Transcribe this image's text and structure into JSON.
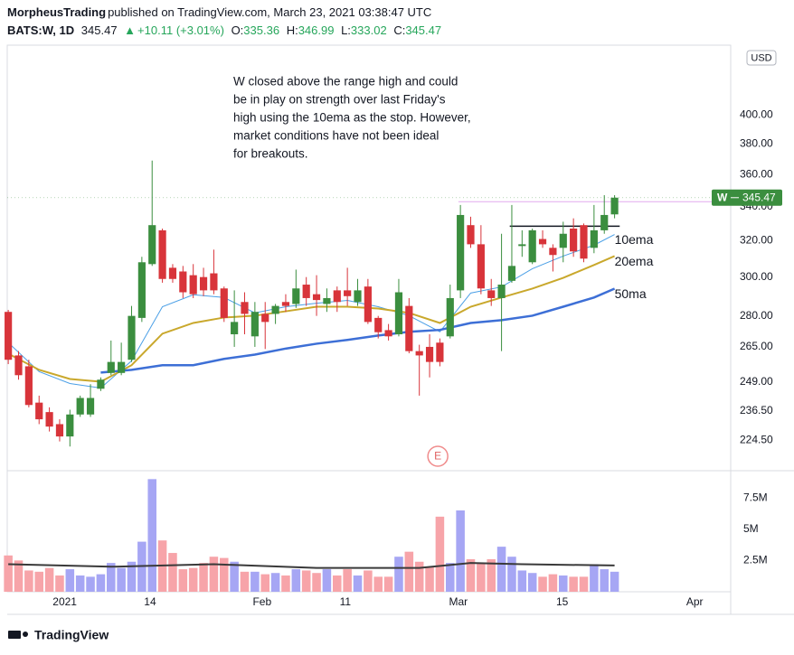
{
  "header": {
    "author": "MorpheusTrading",
    "published": "published on TradingView.com, March 23, 2021 03:38:47 UTC",
    "symbol": "BATS:W, 1D",
    "change": "+10.11 (+3.01%)",
    "ohlc_labels": [
      "O:",
      "H:",
      "L:",
      "C:"
    ]
  },
  "footer": {
    "brand": "TradingView"
  },
  "chart_data": {
    "type": "candlestick",
    "symbol_short": "W",
    "currency": "USD",
    "log_scale": true,
    "grid": false,
    "up_color": "#3b8e3f",
    "down_color": "#d8343a",
    "x": [
      0,
      1,
      2,
      3,
      4,
      5,
      6,
      7,
      8,
      9,
      10,
      11,
      12,
      13,
      14,
      15,
      16,
      17,
      18,
      19,
      20,
      21,
      22,
      23,
      24,
      25,
      26,
      27,
      28,
      29,
      30,
      31,
      32,
      33,
      34,
      35,
      36,
      37,
      38,
      39,
      40,
      41,
      42,
      43,
      44,
      45,
      46,
      47,
      48,
      49,
      50,
      51,
      52,
      53,
      54,
      55,
      56,
      57,
      58,
      59
    ],
    "open": [
      282,
      261,
      256,
      240,
      236,
      231,
      226,
      235,
      235,
      246,
      253,
      253,
      259,
      279,
      307,
      326,
      305,
      303,
      301,
      300,
      302,
      294,
      271,
      287,
      270,
      281,
      281,
      287,
      286,
      296,
      291,
      286,
      293,
      293,
      287,
      295,
      279,
      273,
      271,
      285,
      263,
      265,
      267,
      270,
      293,
      329,
      318,
      293,
      289,
      298,
      317,
      308,
      321,
      316,
      316,
      327,
      329,
      316,
      326,
      335.36
    ],
    "high": [
      283,
      263,
      259,
      243,
      238,
      233,
      237,
      243,
      248,
      251,
      268,
      267,
      285,
      311,
      369,
      327,
      307,
      306,
      307,
      305,
      315,
      295,
      293,
      292,
      287,
      287,
      286,
      291,
      304,
      300,
      301,
      294,
      295,
      305,
      299,
      299,
      280,
      276,
      299,
      289,
      266,
      271,
      269,
      296,
      341,
      334,
      329,
      299,
      324,
      341,
      326,
      327,
      326,
      318,
      331,
      333,
      330,
      341,
      347,
      346.99
    ],
    "low": [
      257,
      250,
      238,
      231,
      228,
      224,
      222,
      234,
      234,
      245,
      252,
      252,
      258,
      277,
      306,
      297,
      297,
      289,
      289,
      290,
      291,
      277,
      265,
      271,
      265,
      264,
      276,
      282,
      284,
      285,
      280,
      282,
      282,
      285,
      285,
      276,
      269,
      268,
      270,
      262,
      243,
      251,
      256,
      269,
      289,
      316,
      291,
      285,
      263,
      297,
      311,
      307,
      316,
      303,
      308,
      311,
      308,
      313,
      324,
      333.02
    ],
    "close": [
      259,
      252,
      239,
      233,
      230,
      226,
      235,
      242,
      242,
      250,
      258,
      258,
      280,
      308,
      329,
      299,
      299,
      292,
      291,
      293,
      293,
      279,
      277,
      281,
      282,
      277,
      285,
      285,
      294,
      289,
      288,
      289,
      287,
      290,
      293,
      277,
      272,
      270,
      292,
      263,
      261,
      258,
      258,
      289,
      335,
      318,
      294,
      289,
      296,
      306,
      318,
      326,
      318,
      312,
      324,
      314,
      310,
      326,
      335,
      345.47
    ],
    "xlim": [
      -0.1,
      70.3
    ],
    "xticks": [
      {
        "value": 5.5,
        "label": "2021"
      },
      {
        "value": 13.8,
        "label": "14"
      },
      {
        "value": 24.7,
        "label": "Feb"
      },
      {
        "value": 32.8,
        "label": "11"
      },
      {
        "value": 43.8,
        "label": "Mar"
      },
      {
        "value": 53.9,
        "label": "15"
      },
      {
        "value": 66.8,
        "label": "Apr"
      }
    ],
    "ylim": [
      213,
      453
    ],
    "yticks": [
      {
        "value": 224.5,
        "label": "224.50"
      },
      {
        "value": 236.5,
        "label": "236.50"
      },
      {
        "value": 249,
        "label": "249.00"
      },
      {
        "value": 265,
        "label": "265.00"
      },
      {
        "value": 280,
        "label": "280.00"
      },
      {
        "value": 300,
        "label": "300.00"
      },
      {
        "value": 320,
        "label": "320.00"
      },
      {
        "value": 340,
        "label": "340.00"
      },
      {
        "value": 360,
        "label": "360.00"
      },
      {
        "value": 380,
        "label": "380.00"
      },
      {
        "value": 400,
        "label": "400.00"
      }
    ],
    "series": [
      {
        "name": "10ema",
        "color": "#4a9fe6",
        "width": 1,
        "x": [
          0,
          3,
          6,
          9,
          12,
          15,
          18,
          21,
          24,
          27,
          30,
          33,
          36,
          39,
          42,
          45,
          48,
          51,
          54,
          57,
          59
        ],
        "values": [
          267,
          253.6,
          248.3,
          246.3,
          258.5,
          284.6,
          290.7,
          289.3,
          281.5,
          284.6,
          286.4,
          287.8,
          284.6,
          280.1,
          272.2,
          291.6,
          294.8,
          304.5,
          311.4,
          317.5,
          323.6
        ]
      },
      {
        "name": "20ema",
        "color": "#c9a82c",
        "width": 2,
        "x": [
          0,
          3,
          6,
          9,
          12,
          15,
          18,
          21,
          24,
          27,
          30,
          33,
          36,
          39,
          42,
          45,
          48,
          51,
          54,
          57,
          59
        ],
        "values": [
          261.8,
          254.4,
          250.3,
          249.1,
          256.5,
          271.3,
          276.5,
          279.2,
          280.1,
          282.3,
          284.6,
          284.6,
          283.7,
          281.5,
          276.5,
          284.6,
          289.3,
          293.9,
          299.6,
          306.5,
          311.4
        ]
      },
      {
        "name": "50ma",
        "color": "#3d6fd6",
        "width": 2.5,
        "x": [
          9,
          12,
          15,
          18,
          21,
          24,
          27,
          30,
          33,
          36,
          39,
          42,
          45,
          48,
          51,
          54,
          57,
          59
        ],
        "values": [
          253.2,
          254.4,
          256.5,
          256.5,
          259.4,
          261.4,
          264.2,
          266.5,
          268.3,
          270.4,
          272.2,
          273.1,
          276.5,
          277.9,
          280.1,
          284.6,
          289.3,
          293.9
        ]
      }
    ],
    "levels": [
      {
        "value": 343,
        "color": "#e2a9ee",
        "x": [
          43.8,
          70.3
        ]
      },
      {
        "value": 328.4,
        "color": "#131722",
        "x": [
          48.8,
          59.5
        ]
      }
    ],
    "annotation": [
      "W closed above the range high and could",
      "be in play on strength over last Friday's",
      "high using the 10ema as the stop.  However,",
      "market conditions have not been ideal",
      "for breakouts."
    ],
    "earnings_marker": {
      "label": "E",
      "x": 41.8
    },
    "volume": {
      "up_color": "#a6a6f4",
      "down_color": "#f7a4a9",
      "values": [
        2900000,
        2500000,
        1700000,
        1600000,
        1900000,
        1300000,
        1800000,
        1300000,
        1200000,
        1400000,
        2300000,
        1900000,
        2400000,
        4000000,
        9000000,
        4100000,
        3100000,
        1800000,
        1900000,
        2300000,
        2800000,
        2700000,
        2400000,
        1600000,
        1600000,
        1400000,
        1500000,
        1300000,
        1800000,
        1700000,
        1500000,
        1800000,
        1300000,
        1800000,
        1300000,
        1700000,
        1200000,
        1200000,
        2800000,
        3200000,
        2400000,
        2000000,
        6000000,
        2300000,
        6500000,
        2600000,
        2300000,
        2600000,
        3600000,
        2800000,
        1700000,
        1500000,
        1200000,
        1400000,
        1300000,
        1200000,
        1200000,
        2200000,
        1800000,
        1600000
      ],
      "ylim": [
        0,
        9600000
      ],
      "yticks": [
        {
          "value": 2500000,
          "label": "2.5M"
        },
        {
          "value": 5000000,
          "label": "5M"
        },
        {
          "value": 7500000,
          "label": "7.5M"
        }
      ],
      "ma": {
        "color": "#3a3a3a",
        "x": [
          0,
          10,
          20,
          30,
          40,
          45,
          50,
          59
        ],
        "values": [
          2200000,
          2000000,
          2200000,
          1900000,
          1900000,
          2300000,
          2200000,
          2100000
        ]
      }
    }
  }
}
